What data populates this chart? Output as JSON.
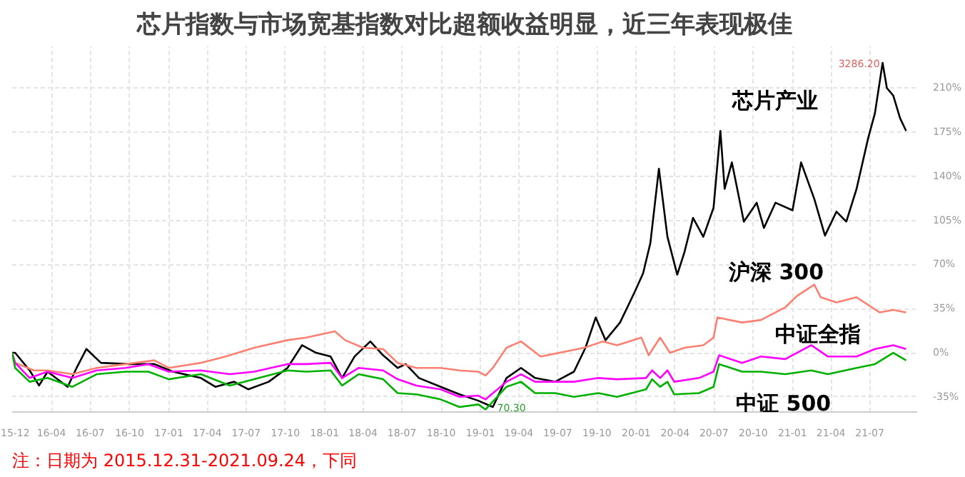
{
  "chart_data": {
    "type": "line",
    "title": "芯片指数与市场宽基指数对比超额收益明显，近三年表现极佳",
    "annotations": [
      {
        "text": "3286.20",
        "x": "2021-07-31",
        "y": 230
      },
      {
        "text": "70.30",
        "x": "2019-01-30",
        "y": -43
      },
      "注：日期为 2015.12.31-2021.09.24，下同"
    ],
    "xlim": [
      "2015-12-31",
      "2021-10-20"
    ],
    "xticks": [
      {
        "value": "2015-12-31",
        "label": "15-12"
      },
      {
        "value": "2016-04-01",
        "label": "16-04"
      },
      {
        "value": "2016-07-01",
        "label": "16-07"
      },
      {
        "value": "2016-10-01",
        "label": "16-10"
      },
      {
        "value": "2017-01-01",
        "label": "17-01"
      },
      {
        "value": "2017-04-01",
        "label": "17-04"
      },
      {
        "value": "2017-07-01",
        "label": "17-07"
      },
      {
        "value": "2017-10-01",
        "label": "17-10"
      },
      {
        "value": "2018-01-01",
        "label": "18-01"
      },
      {
        "value": "2018-04-01",
        "label": "18-04"
      },
      {
        "value": "2018-07-01",
        "label": "18-07"
      },
      {
        "value": "2018-10-01",
        "label": "18-10"
      },
      {
        "value": "2019-01-01",
        "label": "19-01"
      },
      {
        "value": "2019-04-01",
        "label": "19-04"
      },
      {
        "value": "2019-07-01",
        "label": "19-07"
      },
      {
        "value": "2019-10-01",
        "label": "19-10"
      },
      {
        "value": "2020-01-01",
        "label": "20-01"
      },
      {
        "value": "2020-04-01",
        "label": "20-04"
      },
      {
        "value": "2020-07-01",
        "label": "20-07"
      },
      {
        "value": "2020-10-01",
        "label": "20-10"
      },
      {
        "value": "2021-01-01",
        "label": "21-01"
      },
      {
        "value": "2021-04-01",
        "label": "21-04"
      },
      {
        "value": "2021-07-01",
        "label": "21-07"
      }
    ],
    "ylim": [
      -47,
      243
    ],
    "yticks": [
      {
        "value": -35,
        "label": "-35%"
      },
      {
        "value": 0,
        "label": "0%"
      },
      {
        "value": 35,
        "label": "35%"
      },
      {
        "value": 70,
        "label": "70%"
      },
      {
        "value": 105,
        "label": "105%"
      },
      {
        "value": 140,
        "label": "140%"
      },
      {
        "value": 175,
        "label": "175%"
      },
      {
        "value": 210,
        "label": "210%"
      }
    ],
    "grid": true,
    "line_style": "solid",
    "series": [
      {
        "name": "芯片产业",
        "color": "#000000",
        "x": [
          "2015-12-31",
          "2016-01-07",
          "2016-02-10",
          "2016-03-03",
          "2016-03-23",
          "2016-05-09",
          "2016-05-30",
          "2016-06-22",
          "2016-07-26",
          "2016-10-01",
          "2016-11-28",
          "2017-01-11",
          "2017-03-17",
          "2017-04-20",
          "2017-06-03",
          "2017-07-06",
          "2017-08-23",
          "2017-10-06",
          "2017-11-09",
          "2017-12-12",
          "2018-01-15",
          "2018-02-11",
          "2018-03-12",
          "2018-04-18",
          "2018-05-18",
          "2018-06-21",
          "2018-07-10",
          "2018-08-10",
          "2018-09-30",
          "2018-11-13",
          "2018-12-27",
          "2019-01-30",
          "2019-03-03",
          "2019-04-06",
          "2019-05-09",
          "2019-06-25",
          "2019-08-08",
          "2019-09-04",
          "2019-09-28",
          "2019-10-21",
          "2019-11-24",
          "2019-12-28",
          "2020-01-17",
          "2020-02-03",
          "2020-02-23",
          "2020-03-14",
          "2020-04-06",
          "2020-04-23",
          "2020-05-13",
          "2020-06-06",
          "2020-06-30",
          "2020-07-16",
          "2020-07-26",
          "2020-08-12",
          "2020-09-09",
          "2020-10-09",
          "2020-10-26",
          "2020-11-22",
          "2021-01-01",
          "2021-01-21",
          "2021-02-21",
          "2021-03-18",
          "2021-04-14",
          "2021-05-07",
          "2021-05-31",
          "2021-06-27",
          "2021-07-13",
          "2021-07-31",
          "2021-08-10",
          "2021-08-25",
          "2021-09-10",
          "2021-09-24"
        ],
        "values": [
          0,
          0,
          -14,
          -26,
          -15,
          -27,
          -12,
          3,
          -8,
          -9,
          -9,
          -15,
          -20,
          -27,
          -23,
          -29,
          -23,
          -12,
          6,
          0,
          -3,
          -20,
          -3,
          9,
          -2,
          -12,
          -9,
          -20,
          -27,
          -33,
          -38,
          -43,
          -20,
          -12,
          -20,
          -23,
          -15,
          4,
          28,
          10,
          24,
          48,
          63,
          87,
          146,
          92,
          62,
          80,
          107,
          92,
          115,
          176,
          130,
          151,
          104,
          119,
          99,
          119,
          113,
          151,
          122,
          93,
          112,
          104,
          130,
          170,
          190,
          230,
          210,
          204,
          186,
          176
        ]
      },
      {
        "name": "沪深 300",
        "color": "#fa8072",
        "x": [
          "2015-12-31",
          "2016-01-07",
          "2016-02-20",
          "2016-03-23",
          "2016-05-20",
          "2016-07-16",
          "2016-09-22",
          "2016-11-28",
          "2017-01-01",
          "2017-03-17",
          "2017-05-14",
          "2017-07-20",
          "2017-10-06",
          "2017-11-19",
          "2018-01-25",
          "2018-02-18",
          "2018-04-01",
          "2018-05-18",
          "2018-06-21",
          "2018-08-04",
          "2018-09-30",
          "2018-11-13",
          "2018-12-27",
          "2019-01-13",
          "2019-01-30",
          "2019-03-03",
          "2019-04-06",
          "2019-05-22",
          "2019-07-05",
          "2019-09-01",
          "2019-10-15",
          "2019-11-17",
          "2020-01-13",
          "2020-01-30",
          "2020-02-26",
          "2020-03-20",
          "2020-04-23",
          "2020-06-06",
          "2020-06-30",
          "2020-07-09",
          "2020-09-05",
          "2020-10-19",
          "2020-12-15",
          "2021-01-11",
          "2021-02-21",
          "2021-03-08",
          "2021-04-14",
          "2021-05-31",
          "2021-07-24",
          "2021-08-25",
          "2021-09-24"
        ],
        "values": [
          0,
          -8,
          -14,
          -14,
          -17,
          -12,
          -9,
          -6,
          -12,
          -8,
          -3,
          4,
          10,
          12,
          17,
          10,
          4,
          3,
          -8,
          -12,
          -12,
          -14,
          -15,
          -18,
          -12,
          4,
          9,
          -3,
          0,
          4,
          9,
          6,
          12,
          -2,
          12,
          0,
          4,
          6,
          12,
          28,
          24,
          26,
          36,
          45,
          54,
          44,
          40,
          44,
          32,
          34,
          32
        ]
      },
      {
        "name": "中证全指",
        "color": "#ff00ff",
        "x": [
          "2015-12-31",
          "2016-01-07",
          "2016-02-10",
          "2016-03-23",
          "2016-05-20",
          "2016-07-16",
          "2016-09-22",
          "2016-11-14",
          "2017-01-01",
          "2017-03-17",
          "2017-05-24",
          "2017-07-20",
          "2017-10-06",
          "2017-11-19",
          "2018-01-15",
          "2018-02-11",
          "2018-03-22",
          "2018-05-18",
          "2018-06-21",
          "2018-08-04",
          "2018-09-30",
          "2018-11-13",
          "2018-12-27",
          "2019-01-13",
          "2019-03-03",
          "2019-04-06",
          "2019-05-09",
          "2019-06-25",
          "2019-08-08",
          "2019-10-04",
          "2019-11-17",
          "2020-01-24",
          "2020-02-07",
          "2020-02-26",
          "2020-03-14",
          "2020-03-30",
          "2020-05-27",
          "2020-06-30",
          "2020-07-13",
          "2020-09-05",
          "2020-10-19",
          "2020-12-15",
          "2021-02-14",
          "2021-03-25",
          "2021-05-31",
          "2021-07-13",
          "2021-08-25",
          "2021-09-24"
        ],
        "values": [
          0,
          -8,
          -20,
          -15,
          -20,
          -14,
          -12,
          -9,
          -15,
          -14,
          -17,
          -15,
          -9,
          -9,
          -8,
          -20,
          -12,
          -14,
          -21,
          -26,
          -29,
          -35,
          -34,
          -37,
          -23,
          -17,
          -23,
          -23,
          -23,
          -20,
          -21,
          -20,
          -14,
          -20,
          -14,
          -23,
          -20,
          -15,
          -2,
          -8,
          -3,
          -5,
          6,
          -3,
          -3,
          3,
          6,
          3
        ]
      },
      {
        "name": "中证 500",
        "color": "#00b000",
        "x": [
          "2015-12-31",
          "2016-01-07",
          "2016-02-10",
          "2016-03-23",
          "2016-05-20",
          "2016-07-16",
          "2016-09-22",
          "2016-11-14",
          "2017-01-01",
          "2017-03-17",
          "2017-05-24",
          "2017-07-20",
          "2017-10-06",
          "2017-11-19",
          "2018-01-15",
          "2018-02-11",
          "2018-03-22",
          "2018-05-18",
          "2018-06-21",
          "2018-08-04",
          "2018-09-30",
          "2018-11-13",
          "2018-12-27",
          "2019-01-13",
          "2019-03-03",
          "2019-04-06",
          "2019-05-09",
          "2019-06-25",
          "2019-08-08",
          "2019-10-04",
          "2019-11-17",
          "2020-01-24",
          "2020-02-07",
          "2020-02-26",
          "2020-03-14",
          "2020-03-30",
          "2020-05-27",
          "2020-06-30",
          "2020-07-13",
          "2020-09-05",
          "2020-10-19",
          "2020-12-15",
          "2021-02-14",
          "2021-03-25",
          "2021-05-31",
          "2021-07-13",
          "2021-08-25",
          "2021-09-24"
        ],
        "values": [
          0,
          -12,
          -23,
          -20,
          -27,
          -17,
          -15,
          -15,
          -21,
          -17,
          -26,
          -21,
          -14,
          -15,
          -14,
          -26,
          -17,
          -21,
          -32,
          -33,
          -37,
          -43,
          -41,
          -45,
          -27,
          -23,
          -32,
          -32,
          -35,
          -32,
          -35,
          -29,
          -21,
          -27,
          -23,
          -33,
          -32,
          -27,
          -9,
          -15,
          -15,
          -17,
          -14,
          -17,
          -12,
          -9,
          0,
          -6
        ]
      }
    ]
  }
}
